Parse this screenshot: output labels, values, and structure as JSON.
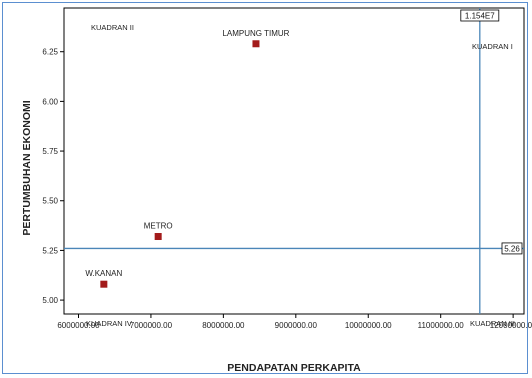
{
  "chart_data": {
    "type": "scatter",
    "xlabel": "PENDAPATAN PERKAPITA",
    "ylabel": "PERTUMBUHAN EKONOMI",
    "xlim": [
      5800000,
      12150000
    ],
    "ylim": [
      4.93,
      6.47
    ],
    "x_ticks": [
      6000000,
      7000000,
      8000000,
      9000000,
      10000000,
      11000000,
      12000000
    ],
    "x_tick_labels": [
      "6000000.00",
      "7000000.00",
      "8000000.00",
      "9000000.00",
      "10000000.00",
      "11000000.00",
      "12000000.00"
    ],
    "y_ticks": [
      5.0,
      5.25,
      5.5,
      5.75,
      6.0,
      6.25
    ],
    "y_tick_labels": [
      "5.00",
      "5.25",
      "5.50",
      "5.75",
      "6.00",
      "6.25"
    ],
    "points": [
      {
        "label": "LAMPUNG TIMUR",
        "x": 8450000,
        "y": 6.29
      },
      {
        "label": "METRO",
        "x": 7100000,
        "y": 5.32
      },
      {
        "label": "W.KANAN",
        "x": 6350000,
        "y": 5.08
      }
    ],
    "reference_lines": {
      "vertical": {
        "value": 11540000,
        "label": "1.154E7"
      },
      "horizontal": {
        "value": 5.26,
        "label": "5.26"
      }
    },
    "quadrant_labels": {
      "q1": "KUADRAN I",
      "q2": "KUADRAN II",
      "q3": "KUADRAN III",
      "q4": "KUADRAN IV"
    },
    "grid": false,
    "colors": {
      "marker": "#a31b1b",
      "reference_line": "#4a86b8",
      "frame_border": "#5b8fd0"
    }
  }
}
